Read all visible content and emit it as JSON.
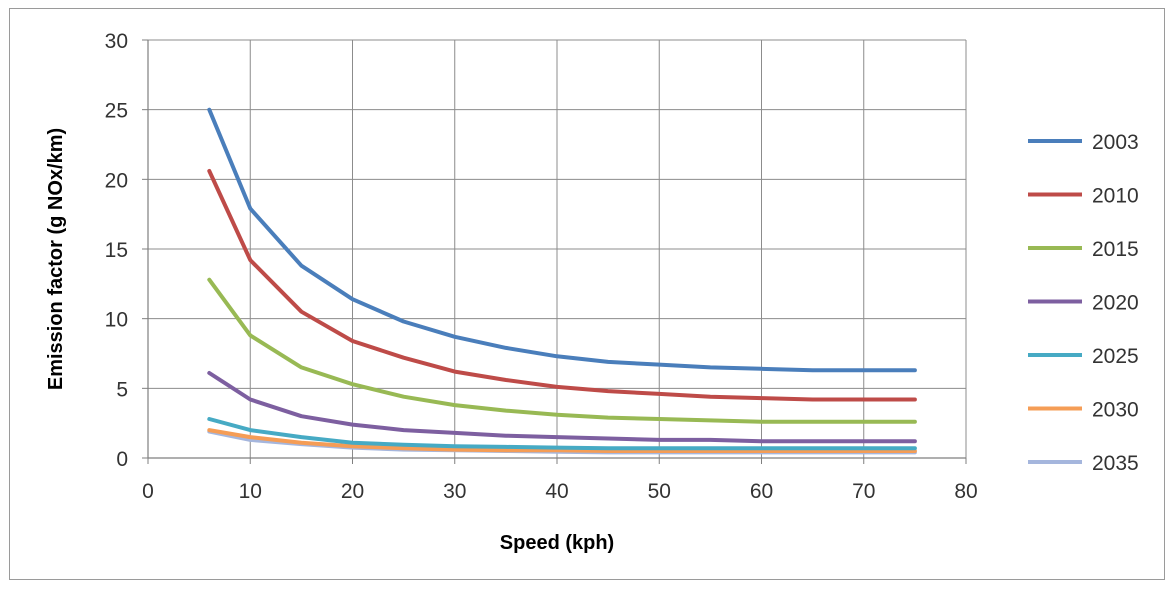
{
  "chart_data": {
    "type": "line",
    "title": "",
    "xlabel": "Speed (kph)",
    "ylabel": "Emission factor (g NOx/km)",
    "xlim": [
      0,
      80
    ],
    "ylim": [
      0,
      30
    ],
    "x_ticks": [
      "0",
      "10",
      "20",
      "30",
      "40",
      "50",
      "60",
      "70",
      "80"
    ],
    "y_ticks": [
      "0",
      "5",
      "10",
      "15",
      "20",
      "25",
      "30"
    ],
    "grid": true,
    "legend_position": "right",
    "x": [
      6,
      10,
      15,
      20,
      25,
      30,
      35,
      40,
      45,
      50,
      55,
      60,
      65,
      70,
      75
    ],
    "series": [
      {
        "name": "2003",
        "color": "#4a7ebb",
        "values": [
          25.0,
          17.9,
          13.8,
          11.4,
          9.8,
          8.7,
          7.9,
          7.3,
          6.9,
          6.7,
          6.5,
          6.4,
          6.3,
          6.3,
          6.3
        ]
      },
      {
        "name": "2010",
        "color": "#be4b48",
        "values": [
          20.6,
          14.2,
          10.5,
          8.4,
          7.2,
          6.2,
          5.6,
          5.1,
          4.8,
          4.6,
          4.4,
          4.3,
          4.2,
          4.2,
          4.2
        ]
      },
      {
        "name": "2015",
        "color": "#98b954",
        "values": [
          12.8,
          8.8,
          6.5,
          5.3,
          4.4,
          3.8,
          3.4,
          3.1,
          2.9,
          2.8,
          2.7,
          2.6,
          2.6,
          2.6,
          2.6
        ]
      },
      {
        "name": "2020",
        "color": "#7d5fa0",
        "values": [
          6.1,
          4.2,
          3.0,
          2.4,
          2.0,
          1.8,
          1.6,
          1.5,
          1.4,
          1.3,
          1.3,
          1.2,
          1.2,
          1.2,
          1.2
        ]
      },
      {
        "name": "2025",
        "color": "#46aac4",
        "values": [
          2.8,
          2.0,
          1.5,
          1.1,
          0.95,
          0.85,
          0.8,
          0.75,
          0.7,
          0.7,
          0.7,
          0.7,
          0.7,
          0.7,
          0.7
        ]
      },
      {
        "name": "2030",
        "color": "#f59d56",
        "values": [
          2.0,
          1.5,
          1.1,
          0.85,
          0.7,
          0.6,
          0.55,
          0.55,
          0.5,
          0.5,
          0.5,
          0.5,
          0.5,
          0.5,
          0.5
        ]
      },
      {
        "name": "2035",
        "color": "#a5b6dd",
        "values": [
          1.9,
          1.3,
          1.0,
          0.75,
          0.6,
          0.55,
          0.5,
          0.45,
          0.4,
          0.4,
          0.4,
          0.4,
          0.4,
          0.4,
          0.4
        ]
      }
    ]
  }
}
